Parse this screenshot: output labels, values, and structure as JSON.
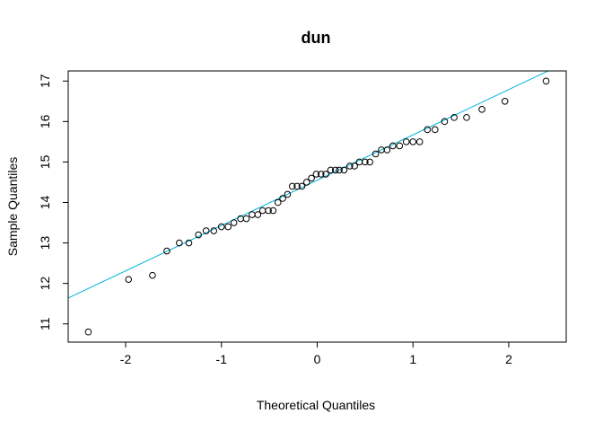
{
  "chart_data": {
    "type": "scatter",
    "subtype": "normal-qq",
    "title": "dun",
    "xlabel": "Theoretical Quantiles",
    "ylabel": "Sample Quantiles",
    "xlim": [
      -2.6,
      2.6
    ],
    "ylim": [
      10.55,
      17.25
    ],
    "x_ticks": [
      -2,
      -1,
      0,
      1,
      2
    ],
    "x_tick_labels": [
      "-2",
      "-1",
      "0",
      "1",
      "2"
    ],
    "y_ticks": [
      11,
      12,
      13,
      14,
      15,
      16,
      17
    ],
    "y_tick_labels": [
      "11",
      "12",
      "13",
      "14",
      "15",
      "16",
      "17"
    ],
    "grid": false,
    "legend": "none",
    "point_color": "#000000",
    "line_color": "#00b4dc",
    "reference_line": {
      "intercept": 14.55,
      "slope": 1.12
    },
    "points": {
      "x": [
        -2.39,
        -1.97,
        -1.72,
        -1.57,
        -1.44,
        -1.34,
        -1.24,
        -1.16,
        -1.08,
        -1.0,
        -0.93,
        -0.87,
        -0.8,
        -0.74,
        -0.68,
        -0.62,
        -0.57,
        -0.51,
        -0.46,
        -0.41,
        -0.36,
        -0.31,
        -0.26,
        -0.21,
        -0.16,
        -0.11,
        -0.06,
        -0.01,
        0.04,
        0.09,
        0.14,
        0.19,
        0.23,
        0.28,
        0.34,
        0.39,
        0.44,
        0.5,
        0.55,
        0.61,
        0.67,
        0.73,
        0.79,
        0.86,
        0.93,
        1.0,
        1.07,
        1.15,
        1.23,
        1.33,
        1.43,
        1.56,
        1.72,
        1.96,
        2.39
      ],
      "y": [
        10.8,
        12.1,
        12.2,
        12.8,
        13.0,
        13.0,
        13.2,
        13.3,
        13.3,
        13.4,
        13.4,
        13.5,
        13.6,
        13.6,
        13.7,
        13.7,
        13.8,
        13.8,
        13.8,
        14.0,
        14.1,
        14.2,
        14.4,
        14.4,
        14.4,
        14.5,
        14.6,
        14.7,
        14.7,
        14.7,
        14.8,
        14.8,
        14.8,
        14.8,
        14.9,
        14.9,
        15.0,
        15.0,
        15.0,
        15.2,
        15.3,
        15.3,
        15.4,
        15.4,
        15.5,
        15.5,
        15.5,
        15.8,
        15.8,
        16.0,
        16.1,
        16.1,
        16.3,
        16.5,
        17.0
      ]
    }
  }
}
